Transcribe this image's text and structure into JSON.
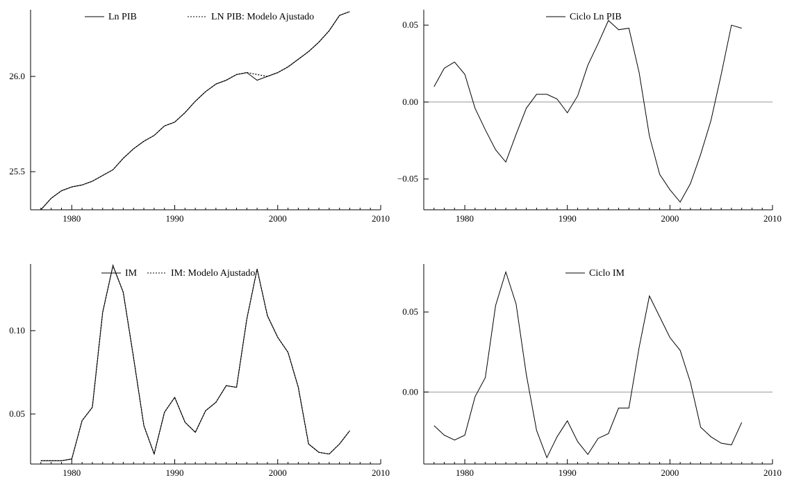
{
  "chart_data": [
    {
      "id": "ln-pib",
      "type": "line",
      "xlim": [
        1976,
        2010
      ],
      "ylim": [
        25.3,
        26.35
      ],
      "xticks": [
        1980,
        1990,
        2000,
        2010
      ],
      "yticks": [
        25.5,
        26.0
      ],
      "ytick_labels": [
        "25.5",
        "26.0"
      ],
      "zero_line": false,
      "legend": {
        "placement": "top-center"
      },
      "x": [
        1977,
        1978,
        1979,
        1980,
        1981,
        1982,
        1983,
        1984,
        1985,
        1986,
        1987,
        1988,
        1989,
        1990,
        1991,
        1992,
        1993,
        1994,
        1995,
        1996,
        1997,
        1998,
        1999,
        2000,
        2001,
        2002,
        2003,
        2004,
        2005,
        2006,
        2007
      ],
      "series": [
        {
          "name": "Ln PIB",
          "style": "solid",
          "values": [
            25.3,
            25.36,
            25.4,
            25.42,
            25.43,
            25.45,
            25.48,
            25.51,
            25.57,
            25.62,
            25.66,
            25.69,
            25.74,
            25.76,
            25.81,
            25.87,
            25.92,
            25.96,
            25.98,
            26.01,
            26.02,
            25.98,
            26.0,
            26.02,
            26.05,
            26.09,
            26.13,
            26.18,
            26.24,
            26.32,
            26.34
          ]
        },
        {
          "name": "LN PIB: Modelo Ajustado",
          "style": "dotted",
          "values": [
            25.3,
            25.36,
            25.4,
            25.42,
            25.43,
            25.45,
            25.48,
            25.51,
            25.57,
            25.62,
            25.66,
            25.69,
            25.74,
            25.76,
            25.81,
            25.87,
            25.92,
            25.96,
            25.98,
            26.01,
            26.02,
            26.01,
            26.0,
            26.02,
            26.05,
            26.09,
            26.13,
            26.18,
            26.24,
            26.32,
            26.34
          ]
        }
      ]
    },
    {
      "id": "ciclo-ln-pib",
      "type": "line",
      "xlim": [
        1976,
        2010
      ],
      "ylim": [
        -0.07,
        0.06
      ],
      "xticks": [
        1980,
        1990,
        2000,
        2010
      ],
      "yticks": [
        -0.05,
        0.0,
        0.05
      ],
      "ytick_labels": [
        "−0.05",
        "0.00",
        "0.05"
      ],
      "zero_line": true,
      "legend": {
        "placement": "top-center"
      },
      "x": [
        1977,
        1978,
        1979,
        1980,
        1981,
        1982,
        1983,
        1984,
        1985,
        1986,
        1987,
        1988,
        1989,
        1990,
        1991,
        1992,
        1993,
        1994,
        1995,
        1996,
        1997,
        1998,
        1999,
        2000,
        2001,
        2002,
        2003,
        2004,
        2005,
        2006,
        2007
      ],
      "series": [
        {
          "name": "Ciclo Ln PIB",
          "style": "solid",
          "values": [
            0.01,
            0.022,
            0.026,
            0.018,
            -0.004,
            -0.018,
            -0.031,
            -0.039,
            -0.021,
            -0.004,
            0.005,
            0.005,
            0.002,
            -0.007,
            0.004,
            0.024,
            0.038,
            0.053,
            0.047,
            0.048,
            0.019,
            -0.022,
            -0.047,
            -0.057,
            -0.065,
            -0.053,
            -0.034,
            -0.012,
            0.018,
            0.05,
            0.048
          ]
        }
      ]
    },
    {
      "id": "im",
      "type": "line",
      "xlim": [
        1976,
        2010
      ],
      "ylim": [
        0.02,
        0.14
      ],
      "xticks": [
        1980,
        1990,
        2000,
        2010
      ],
      "yticks": [
        0.05,
        0.1
      ],
      "ytick_labels": [
        "0.05",
        "0.10"
      ],
      "zero_line": false,
      "legend": {
        "placement": "top-center"
      },
      "x": [
        1977,
        1978,
        1979,
        1980,
        1981,
        1982,
        1983,
        1984,
        1985,
        1986,
        1987,
        1988,
        1989,
        1990,
        1991,
        1992,
        1993,
        1994,
        1995,
        1996,
        1997,
        1998,
        1999,
        2000,
        2001,
        2002,
        2003,
        2004,
        2005,
        2006,
        2007
      ],
      "series": [
        {
          "name": "IM",
          "style": "solid",
          "values": [
            0.022,
            0.022,
            0.022,
            0.023,
            0.046,
            0.054,
            0.111,
            0.139,
            0.123,
            0.084,
            0.043,
            0.026,
            0.051,
            0.06,
            0.045,
            0.039,
            0.052,
            0.057,
            0.067,
            0.066,
            0.107,
            0.137,
            0.109,
            0.096,
            0.087,
            0.066,
            0.032,
            0.027,
            0.026,
            0.032,
            0.04
          ]
        },
        {
          "name": "IM: Modelo Ajustado",
          "style": "dotted",
          "values": [
            0.022,
            0.022,
            0.022,
            0.023,
            0.046,
            0.054,
            0.111,
            0.139,
            0.123,
            0.084,
            0.043,
            0.026,
            0.051,
            0.06,
            0.045,
            0.039,
            0.052,
            0.057,
            0.067,
            0.066,
            0.107,
            0.137,
            0.109,
            0.096,
            0.087,
            0.066,
            0.032,
            0.027,
            0.026,
            0.032,
            0.04
          ]
        }
      ]
    },
    {
      "id": "ciclo-im",
      "type": "line",
      "xlim": [
        1976,
        2010
      ],
      "ylim": [
        -0.045,
        0.08
      ],
      "xticks": [
        1980,
        1990,
        2000,
        2010
      ],
      "yticks": [
        0.0,
        0.05
      ],
      "ytick_labels": [
        "0.00",
        "0.05"
      ],
      "zero_line": true,
      "legend": {
        "placement": "top-center"
      },
      "x": [
        1977,
        1978,
        1979,
        1980,
        1981,
        1982,
        1983,
        1984,
        1985,
        1986,
        1987,
        1988,
        1989,
        1990,
        1991,
        1992,
        1993,
        1994,
        1995,
        1996,
        1997,
        1998,
        1999,
        2000,
        2001,
        2002,
        2003,
        2004,
        2005,
        2006,
        2007
      ],
      "series": [
        {
          "name": "Ciclo IM",
          "style": "solid",
          "values": [
            -0.021,
            -0.027,
            -0.03,
            -0.027,
            -0.003,
            0.009,
            0.054,
            0.075,
            0.055,
            0.011,
            -0.024,
            -0.041,
            -0.028,
            -0.018,
            -0.031,
            -0.039,
            -0.029,
            -0.026,
            -0.01,
            -0.01,
            0.028,
            0.06,
            0.047,
            0.034,
            0.026,
            0.006,
            -0.022,
            -0.028,
            -0.032,
            -0.033,
            -0.019
          ]
        }
      ]
    }
  ]
}
